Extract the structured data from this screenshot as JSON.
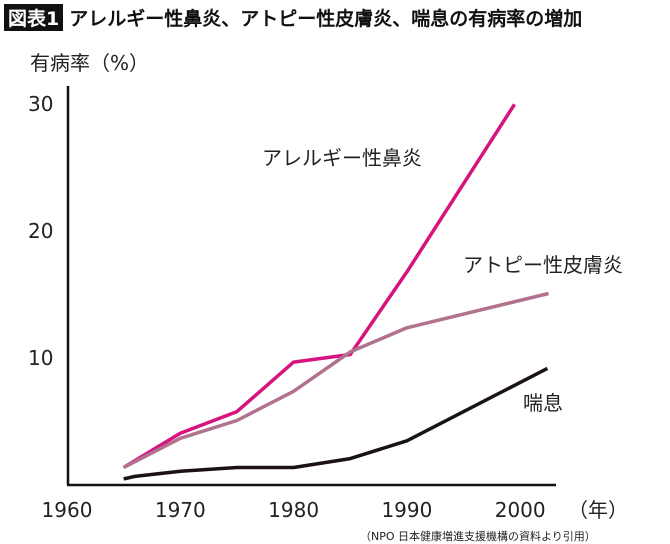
{
  "header": {
    "badge": "図表1",
    "title": "アレルギー性鼻炎、アトピー性皮膚炎、喘息の有病率の増加"
  },
  "chart_data": {
    "type": "line",
    "title": "アレルギー性鼻炎、アトピー性皮膚炎、喘息の有病率の増加",
    "ylabel": "有病率（%）",
    "xlabel": "（年）",
    "xlim": [
      1960,
      2005
    ],
    "ylim": [
      0,
      30
    ],
    "xticks": [
      "1960",
      "1970",
      "1980",
      "1990",
      "2000"
    ],
    "yticks": [
      "10",
      "20",
      "30"
    ],
    "grid": false,
    "source": "（NPO 日本健康増進支援機構の資料より引用）",
    "series": [
      {
        "name": "アレルギー性鼻炎",
        "color": "#d6137f",
        "x": [
          1965,
          1970,
          1975,
          1980,
          1985,
          1990,
          1999.5
        ],
        "values": [
          1.3,
          4.0,
          5.7,
          9.6,
          10.2,
          16.7,
          29.9
        ]
      },
      {
        "name": "アトピー性皮膚炎",
        "color": "#b0728f",
        "x": [
          1965,
          1970,
          1975,
          1980,
          1985,
          1990,
          2002.5
        ],
        "values": [
          1.3,
          3.6,
          5.0,
          7.3,
          10.4,
          12.3,
          15.0
        ]
      },
      {
        "name": "喘息",
        "color": "#1a1311",
        "x": [
          1965,
          1966,
          1970,
          1975,
          1980,
          1985,
          1990,
          2002.4
        ],
        "values": [
          0.4,
          0.6,
          1.0,
          1.3,
          1.3,
          2.0,
          3.4,
          9.1
        ]
      }
    ]
  }
}
